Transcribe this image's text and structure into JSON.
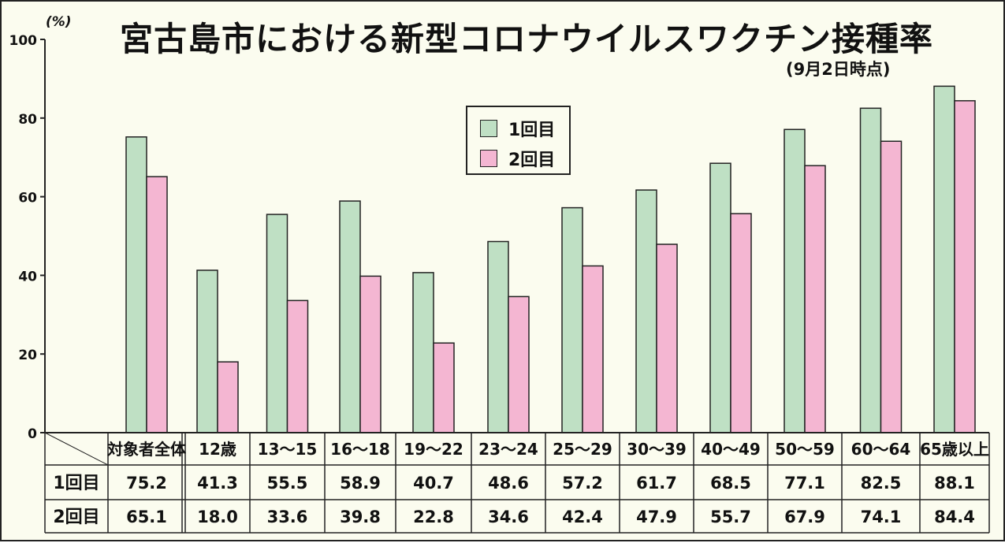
{
  "chart_data": {
    "type": "bar",
    "title": "宮古島市における新型コロナウイルスワクチン接種率",
    "subtitle": "(9月2日時点)",
    "y_unit": "(%)",
    "ylim": [
      0,
      100
    ],
    "yticks": [
      "0",
      "20",
      "40",
      "60",
      "80",
      "100"
    ],
    "legend_position": "top-center",
    "categories": [
      "対象者全体",
      "12歳",
      "13〜15",
      "16〜18",
      "19〜22",
      "23〜24",
      "25〜29",
      "30〜39",
      "40〜49",
      "50〜59",
      "60〜64",
      "65歳以上"
    ],
    "series": [
      {
        "name": "1回目",
        "color": "#bfe0c4",
        "values": [
          75.2,
          41.3,
          55.5,
          58.9,
          40.7,
          48.6,
          57.2,
          61.7,
          68.5,
          77.1,
          82.5,
          88.1
        ],
        "labels": [
          "75.2",
          "41.3",
          "55.5",
          "58.9",
          "40.7",
          "48.6",
          "57.2",
          "61.7",
          "68.5",
          "77.1",
          "82.5",
          "88.1"
        ]
      },
      {
        "name": "2回目",
        "color": "#f4b6d2",
        "values": [
          65.1,
          18.0,
          33.6,
          39.8,
          22.8,
          34.6,
          42.4,
          47.9,
          55.7,
          67.9,
          74.1,
          84.4
        ],
        "labels": [
          "65.1",
          "18.0",
          "33.6",
          "39.8",
          "22.8",
          "34.6",
          "42.4",
          "47.9",
          "55.7",
          "67.9",
          "74.1",
          "84.4"
        ]
      }
    ],
    "table": true
  }
}
